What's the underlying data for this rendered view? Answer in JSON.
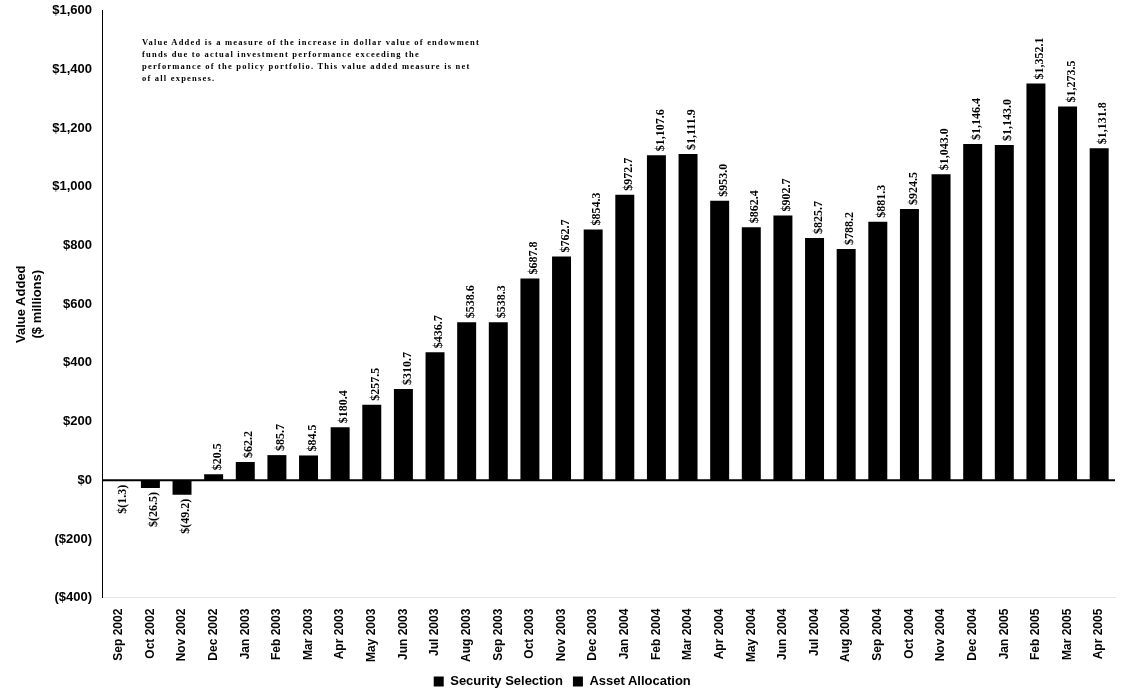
{
  "chart_data": {
    "type": "bar",
    "ylabel": "Value Added\n($ millions)",
    "categories": [
      "Sep 2002",
      "Oct 2002",
      "Nov 2002",
      "Dec 2002",
      "Jan 2003",
      "Feb 2003",
      "Mar 2003",
      "Apr 2003",
      "May 2003",
      "Jun 2003",
      "Jul 2003",
      "Aug 2003",
      "Sep 2003",
      "Oct 2003",
      "Nov 2003",
      "Dec 2003",
      "Jan 2004",
      "Feb 2004",
      "Mar 2004",
      "Apr 2004",
      "May 2004",
      "Jun 2004",
      "Jul 2004",
      "Aug 2004",
      "Sep 2004",
      "Oct 2004",
      "Nov 2004",
      "Dec 2004",
      "Jan 2005",
      "Feb 2005",
      "Mar 2005",
      "Apr 2005"
    ],
    "series": [
      {
        "name": "Security Selection",
        "color": "#000000",
        "values": [
          -1.3,
          -26.5,
          -49.2,
          20.5,
          62.2,
          85.7,
          84.5,
          180.4,
          257.5,
          310.7,
          436.7,
          538.6,
          538.3,
          687.8,
          762.7,
          854.3,
          972.7,
          1107.6,
          1111.9,
          953.0,
          862.4,
          902.7,
          825.7,
          788.2,
          881.3,
          924.5,
          1043.0,
          1146.4,
          1143.0,
          1352.1,
          1273.5,
          1131.8
        ],
        "value_labels": [
          "$(1.3)",
          "$(26.5)",
          "$(49.2)",
          "$20.5",
          "$62.2",
          "$85.7",
          "$84.5",
          "$180.4",
          "$257.5",
          "$310.7",
          "$436.7",
          "$538.6",
          "$538.3",
          "$687.8",
          "$762.7",
          "$854.3",
          "$972.7",
          "$1,107.6",
          "$1,111.9",
          "$953.0",
          "$862.4",
          "$902.7",
          "$825.7",
          "$788.2",
          "$881.3",
          "$924.5",
          "$1,043.0",
          "$1,146.4",
          "$1,143.0",
          "$1,352.1",
          "$1,273.5",
          "$1,131.8"
        ]
      },
      {
        "name": "Asset Allocation",
        "color": "#000000",
        "values": [
          null,
          null,
          null,
          null,
          null,
          null,
          null,
          null,
          null,
          null,
          null,
          null,
          null,
          null,
          null,
          null,
          null,
          null,
          null,
          null,
          null,
          null,
          null,
          null,
          null,
          null,
          null,
          null,
          null,
          null,
          null,
          null
        ]
      }
    ],
    "stacked": true,
    "ylim": [
      -400,
      1600
    ],
    "yticks": [
      {
        "value": -400,
        "label": "($400)"
      },
      {
        "value": -200,
        "label": "($200)"
      },
      {
        "value": 0,
        "label": "$0"
      },
      {
        "value": 200,
        "label": "$200"
      },
      {
        "value": 400,
        "label": "$400"
      },
      {
        "value": 600,
        "label": "$600"
      },
      {
        "value": 800,
        "label": "$800"
      },
      {
        "value": 1000,
        "label": "$1,000"
      },
      {
        "value": 1200,
        "label": "$1,200"
      },
      {
        "value": 1400,
        "label": "$1,400"
      },
      {
        "value": 1600,
        "label": "$1,600"
      }
    ],
    "grid": false,
    "ref_lines": [
      {
        "axis": "y",
        "value": 0,
        "color": "#000000"
      }
    ],
    "legend": "bottom",
    "annotations": [
      "Value Added is a measure of the increase in dollar value of endowment funds due to actual investment performance exceeding the performance of the policy portfolio.  This value added measure is net of all expenses."
    ]
  }
}
